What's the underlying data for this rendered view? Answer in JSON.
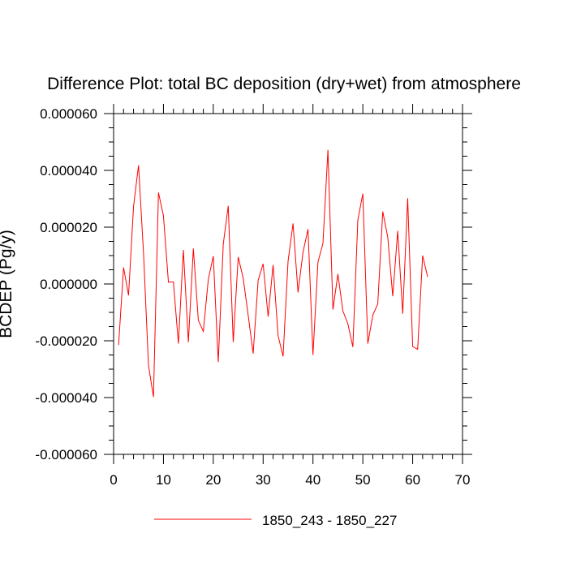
{
  "chart_data": {
    "type": "line",
    "title": "Difference Plot: total BC deposition (dry+wet) from atmosphere",
    "ylabel": "BCDEP  (Pg/y)",
    "xlabel": "",
    "xlim": [
      0,
      70
    ],
    "ylim": [
      -6e-05,
      6e-05
    ],
    "x_ticks": [
      0,
      10,
      20,
      30,
      40,
      50,
      60,
      70
    ],
    "x_tick_labels": [
      "0",
      "10",
      "20",
      "30",
      "40",
      "50",
      "60",
      "70"
    ],
    "y_ticks": [
      -6e-05,
      -4e-05,
      -2e-05,
      0,
      2e-05,
      4e-05,
      6e-05
    ],
    "y_tick_labels": [
      "-0.000060",
      "-0.000040",
      "-0.000020",
      "0.000000",
      "0.000020",
      "0.000040",
      "0.000060"
    ],
    "grid": false,
    "legend_position": "bottom",
    "series": [
      {
        "name": "1850_243 - 1850_227",
        "color": "#ff0000",
        "x": [
          1,
          2,
          3,
          4,
          5,
          6,
          7,
          8,
          9,
          10,
          11,
          12,
          13,
          14,
          15,
          16,
          17,
          18,
          19,
          20,
          21,
          22,
          23,
          24,
          25,
          26,
          27,
          28,
          29,
          30,
          31,
          32,
          33,
          34,
          35,
          36,
          37,
          38,
          39,
          40,
          41,
          42,
          43,
          44,
          45,
          46,
          47,
          48,
          49,
          50,
          51,
          52,
          53,
          54,
          55,
          56,
          57,
          58,
          59,
          60,
          61,
          62,
          63
        ],
        "y": [
          -2.15e-05,
          5.8e-06,
          -4e-06,
          2.73e-05,
          4.18e-05,
          1.1e-05,
          -2.87e-05,
          -3.98e-05,
          3.22e-05,
          2.4e-05,
          6e-07,
          7e-07,
          -2.1e-05,
          1.2e-05,
          -2.05e-05,
          1.25e-05,
          -1.28e-05,
          -1.67e-05,
          1.6e-06,
          9.8e-06,
          -2.75e-05,
          1.4e-05,
          2.75e-05,
          -2.05e-05,
          9.5e-06,
          2e-06,
          -1.1e-05,
          -2.45e-05,
          1.3e-06,
          7.1e-06,
          -1.15e-05,
          6.7e-06,
          -1.82e-05,
          -2.55e-05,
          8e-06,
          2.13e-05,
          -3e-06,
          1.12e-05,
          1.93e-05,
          -2.5e-05,
          7.7e-06,
          1.43e-05,
          4.72e-05,
          -9e-06,
          3.5e-06,
          -9.5e-06,
          -1.4e-05,
          -2.22e-05,
          2.25e-05,
          3.18e-05,
          -2.1e-05,
          -1.1e-05,
          -7e-06,
          2.55e-05,
          1.65e-05,
          -4.3e-06,
          1.87e-05,
          -1.05e-05,
          3.02e-05,
          -2.2e-05,
          -2.3e-05,
          1e-05,
          2.5e-06
        ]
      }
    ]
  }
}
